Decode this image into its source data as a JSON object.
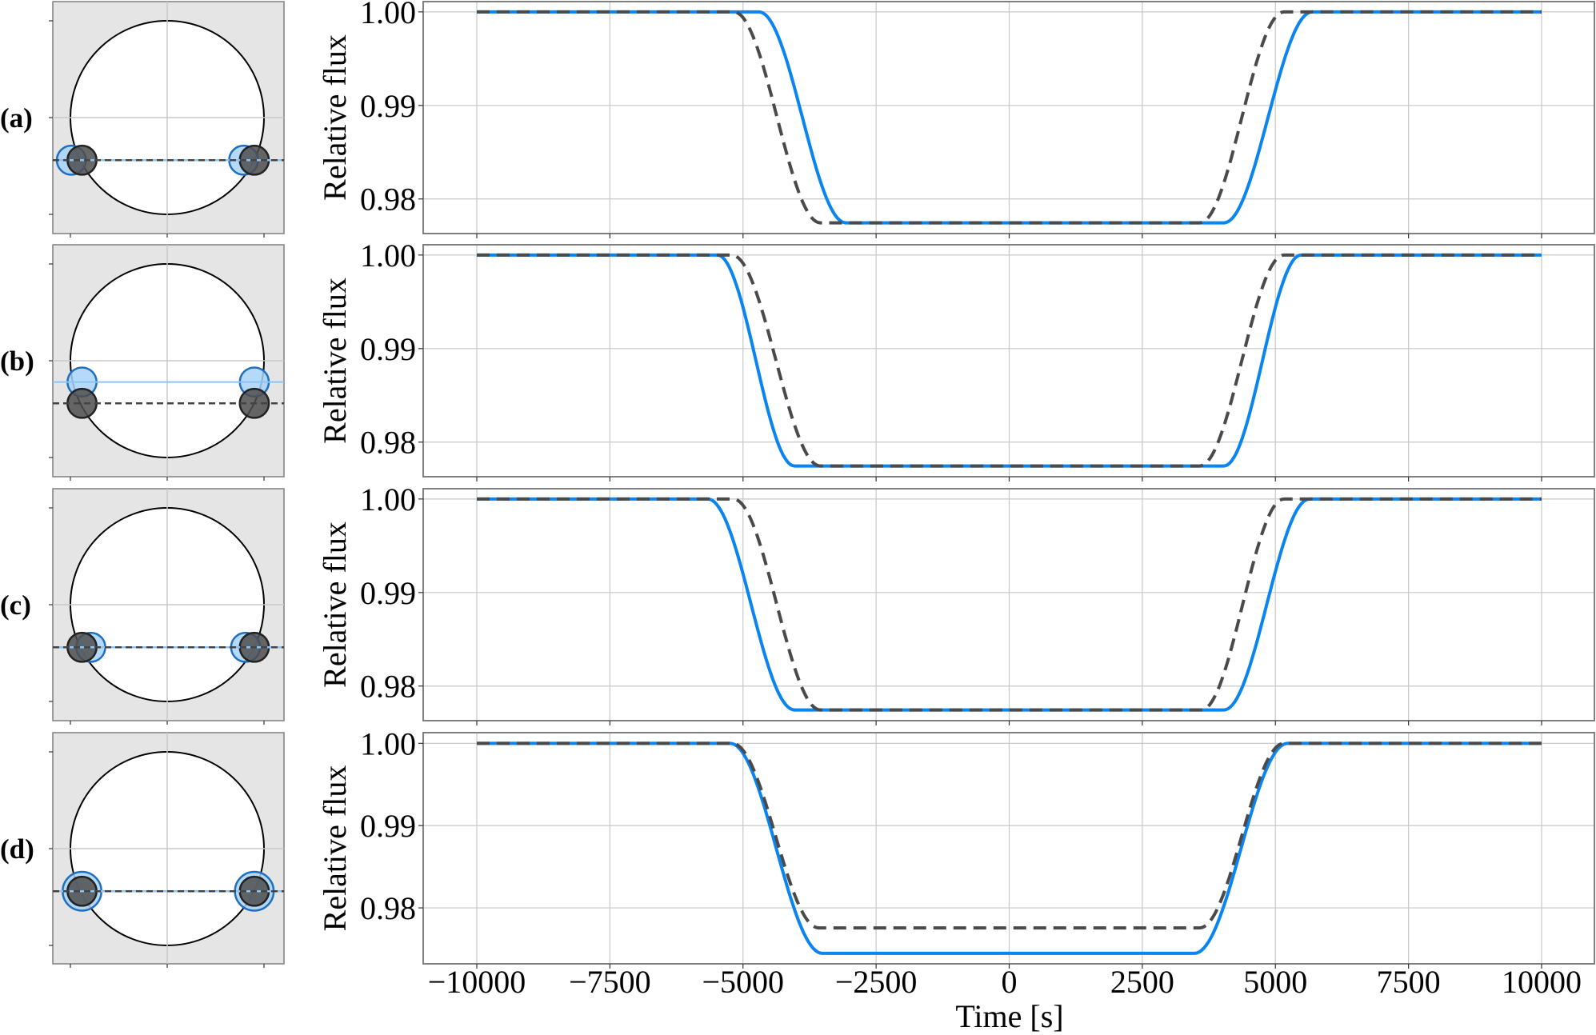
{
  "figure": {
    "panel_labels": [
      "(a)",
      "(b)",
      "(c)",
      "(d)"
    ],
    "ylabel": "Relative flux",
    "xlabel": "Time [s]",
    "x_ticks": [
      -10000,
      -7500,
      -5000,
      -2500,
      0,
      2500,
      5000,
      7500,
      10000
    ],
    "x_tick_labels": [
      "−10000",
      "−7500",
      "−5000",
      "−2500",
      "0",
      "2500",
      "5000",
      "7500",
      "10000"
    ],
    "y_ticks": [
      1.0,
      0.99,
      0.98
    ],
    "y_tick_labels": [
      "1.00",
      "0.99",
      "0.98"
    ]
  },
  "colors": {
    "solid_line": "#0a84f0",
    "dashed_line": "#4a4a4a",
    "diagram_bg": "#e5e5e5",
    "grid": "#c8c8c8",
    "spine": "#7f7f7f",
    "planet_blue_fill": "#a8d2f7",
    "planet_blue_edge": "#1f6fbf",
    "planet_dark_fill": "#4d4d4d",
    "planet_dark_edge": "#222222"
  },
  "chart_data": [
    {
      "type": "line",
      "panel": "(a)",
      "xlabel": "",
      "ylabel": "Relative flux",
      "xlim": [
        -10700,
        10700
      ],
      "ylim": [
        0.9763,
        1.0011
      ],
      "grid": true,
      "series": [
        {
          "name": "solid (blue)",
          "style": "solid",
          "x": [
            -10000,
            -4700,
            -3070,
            4035,
            5690,
            10000
          ],
          "y": [
            1.0,
            1.0,
            0.97745,
            0.97745,
            1.0,
            1.0
          ]
        },
        {
          "name": "dashed (dark grey)",
          "style": "dashed",
          "x": [
            -10000,
            -5170,
            -3550,
            3580,
            5160,
            10000
          ],
          "y": [
            1.0,
            1.0,
            0.97745,
            0.97745,
            1.0,
            1.0
          ]
        }
      ],
      "diagram": {
        "star_cy": 0.0,
        "orbit_line_y": -0.44,
        "blue_line_y": -0.44,
        "blue_x": [
          -0.99,
          0.79
        ],
        "dark_x": [
          -0.88,
          0.9
        ],
        "blue_r": 0.15,
        "dark_r": 0.15
      }
    },
    {
      "type": "line",
      "panel": "(b)",
      "xlabel": "",
      "ylabel": "Relative flux",
      "xlim": [
        -10700,
        10700
      ],
      "ylim": [
        0.9763,
        1.0011
      ],
      "grid": true,
      "series": [
        {
          "name": "solid (blue)",
          "style": "solid",
          "x": [
            -10000,
            -5480,
            -4035,
            4035,
            5480,
            10000
          ],
          "y": [
            1.0,
            1.0,
            0.97745,
            0.97745,
            1.0,
            1.0
          ]
        },
        {
          "name": "dashed (dark grey)",
          "style": "dashed",
          "x": [
            -10000,
            -5210,
            -3550,
            3580,
            5160,
            10000
          ],
          "y": [
            1.0,
            1.0,
            0.97745,
            0.97745,
            1.0,
            1.0
          ]
        }
      ],
      "diagram": {
        "orbit_line_y": -0.44,
        "blue_line_y": -0.22,
        "blue_x": [
          -0.88,
          0.9
        ],
        "dark_x": [
          -0.88,
          0.9
        ],
        "blue_r": 0.15,
        "dark_r": 0.15
      }
    },
    {
      "type": "line",
      "panel": "(c)",
      "xlabel": "",
      "ylabel": "Relative flux",
      "xlim": [
        -10700,
        10700
      ],
      "ylim": [
        0.9763,
        1.0011
      ],
      "grid": true,
      "series": [
        {
          "name": "solid (blue)",
          "style": "solid",
          "x": [
            -10000,
            -5660,
            -4035,
            4035,
            5640,
            10000
          ],
          "y": [
            1.0,
            1.0,
            0.97745,
            0.97745,
            1.0,
            1.0
          ]
        },
        {
          "name": "dashed (dark grey)",
          "style": "dashed",
          "x": [
            -10000,
            -5180,
            -3550,
            3610,
            5160,
            10000
          ],
          "y": [
            1.0,
            1.0,
            0.97745,
            0.97745,
            1.0,
            1.0
          ]
        }
      ],
      "diagram": {
        "orbit_line_y": -0.44,
        "blue_line_y": -0.44,
        "blue_x": [
          -0.79,
          0.81
        ],
        "dark_x": [
          -0.88,
          0.9
        ],
        "blue_r": 0.15,
        "dark_r": 0.15
      }
    },
    {
      "type": "line",
      "panel": "(d)",
      "xlabel": "Time [s]",
      "ylabel": "Relative flux",
      "xlim": [
        -10700,
        10700
      ],
      "ylim": [
        0.9732,
        1.0013
      ],
      "grid": true,
      "series": [
        {
          "name": "solid (blue)",
          "style": "solid",
          "x": [
            -10000,
            -5240,
            -3510,
            3480,
            5230,
            10000
          ],
          "y": [
            1.0,
            1.0,
            0.97447,
            0.97447,
            1.0,
            1.0
          ]
        },
        {
          "name": "dashed (dark grey)",
          "style": "dashed",
          "x": [
            -10000,
            -5200,
            -3580,
            3580,
            5160,
            10000
          ],
          "y": [
            1.0,
            1.0,
            0.97757,
            0.97757,
            1.0,
            1.0
          ]
        }
      ],
      "diagram": {
        "orbit_line_y": -0.44,
        "blue_line_y": -0.44,
        "blue_x": [
          -0.88,
          0.9
        ],
        "dark_x": [
          -0.88,
          0.9
        ],
        "blue_r": 0.2,
        "dark_r": 0.15
      }
    }
  ]
}
